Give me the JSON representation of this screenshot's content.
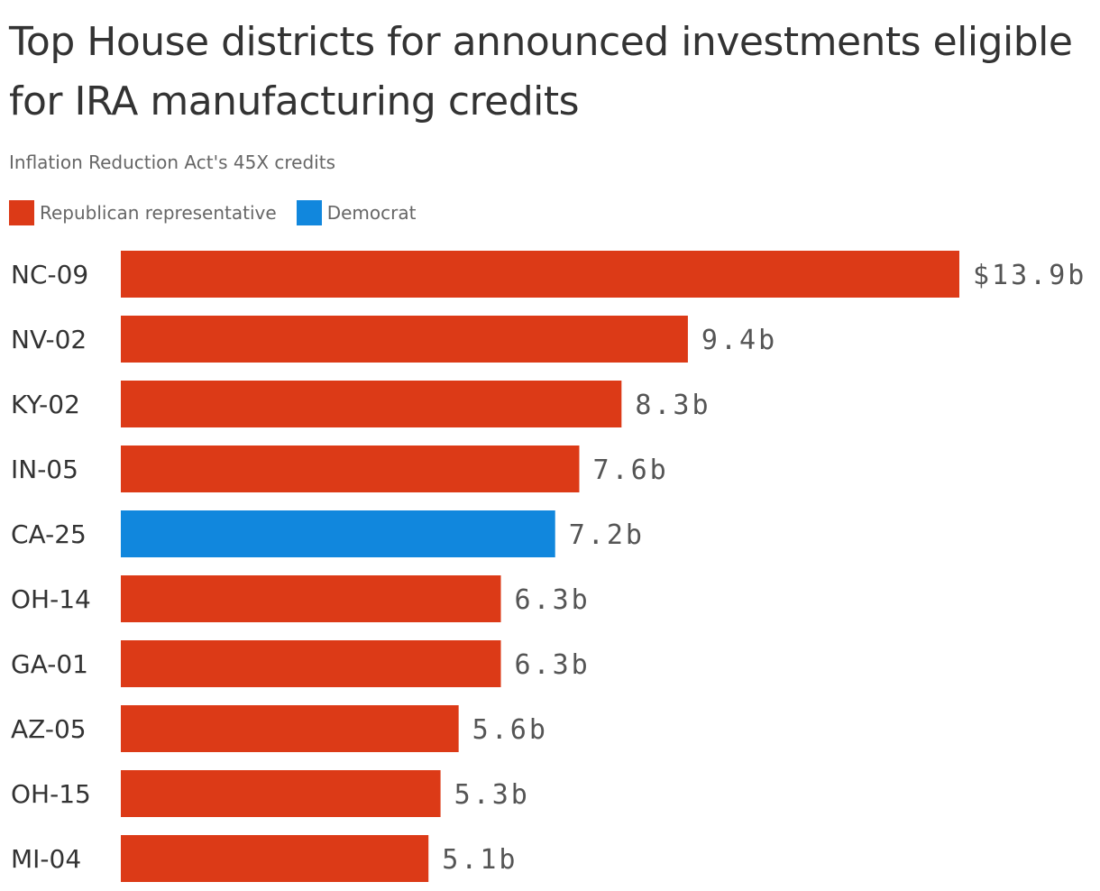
{
  "chart_data": {
    "type": "bar",
    "orientation": "horizontal",
    "title": "Top House districts for announced investments eligible for IRA manufacturing credits",
    "subtitle": "Inflation Reduction Act's 45X credits",
    "legend": [
      {
        "name": "Republican representative",
        "color": "#dc3a17"
      },
      {
        "name": "Democrat",
        "color": "#1187dd"
      }
    ],
    "categories": [
      "NC-09",
      "NV-02",
      "KY-02",
      "IN-05",
      "CA-25",
      "OH-14",
      "GA-01",
      "AZ-05",
      "OH-15",
      "MI-04"
    ],
    "values": [
      13.9,
      9.4,
      8.3,
      7.6,
      7.2,
      6.3,
      6.3,
      5.6,
      5.3,
      5.1
    ],
    "value_labels": [
      "$13.9b",
      "9.4b",
      "8.3b",
      "7.6b",
      "7.2b",
      "6.3b",
      "6.3b",
      "5.6b",
      "5.3b",
      "5.1b"
    ],
    "party": [
      "Republican representative",
      "Republican representative",
      "Republican representative",
      "Republican representative",
      "Democrat",
      "Republican representative",
      "Republican representative",
      "Republican representative",
      "Republican representative",
      "Republican representative"
    ],
    "xlim": [
      0,
      13.9
    ],
    "grid": false,
    "legend_placement": "top-left"
  }
}
